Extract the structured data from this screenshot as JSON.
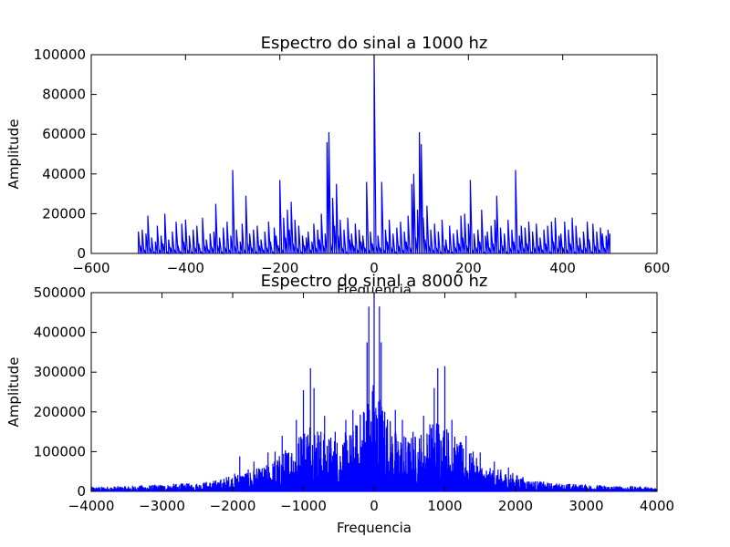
{
  "chart_data": [
    {
      "type": "line",
      "title": "Espectro do sinal a 1000 hz",
      "xlabel": "Frequencia",
      "ylabel": "Amplitude",
      "xlim": [
        -600,
        600
      ],
      "ylim": [
        0,
        100000
      ],
      "xticks": [
        "−600",
        "−400",
        "−200",
        "0",
        "200",
        "400",
        "600"
      ],
      "yticks": [
        "0",
        "20000",
        "40000",
        "60000",
        "80000",
        "100000"
      ],
      "grid": false,
      "series_color": "#0000ff",
      "series": [
        {
          "x": [
            -500,
            -496,
            -492,
            -488,
            -484,
            -480,
            -476,
            -472,
            -468,
            -464,
            -460,
            -456,
            -452,
            -448,
            -444,
            -440,
            -436,
            -432,
            -428,
            -424,
            -420,
            -416,
            -412,
            -408,
            -404,
            -400,
            -396,
            -392,
            -388,
            -384,
            -380,
            -376,
            -372,
            -368,
            -364,
            -360,
            -356,
            -352,
            -348,
            -344,
            -340,
            -336,
            -332,
            -328,
            -324,
            -320,
            -316,
            -312,
            -308,
            -304,
            -300,
            -296,
            -292,
            -288,
            -284,
            -280,
            -276,
            -272,
            -268,
            -264,
            -260,
            -256,
            -252,
            -248,
            -244,
            -240,
            -236,
            -232,
            -228,
            -224,
            -220,
            -216,
            -212,
            -208,
            -204,
            -200,
            -196,
            -192,
            -188,
            -184,
            -180,
            -176,
            -172,
            -168,
            -164,
            -160,
            -156,
            -152,
            -148,
            -144,
            -140,
            -136,
            -132,
            -128,
            -124,
            -120,
            -116,
            -112,
            -108,
            -104,
            -100,
            -96,
            -92,
            -88,
            -84,
            -80,
            -76,
            -72,
            -68,
            -64,
            -60,
            -56,
            -52,
            -48,
            -44,
            -40,
            -36,
            -32,
            -28,
            -24,
            -20,
            -16,
            -12,
            -8,
            -4,
            0,
            4,
            8,
            12,
            16,
            20,
            24,
            28,
            32,
            36,
            40,
            44,
            48,
            52,
            56,
            60,
            64,
            68,
            72,
            76,
            80,
            84,
            88,
            92,
            96,
            100,
            104,
            108,
            112,
            116,
            120,
            124,
            128,
            132,
            136,
            140,
            144,
            148,
            152,
            156,
            160,
            164,
            168,
            172,
            176,
            180,
            184,
            188,
            192,
            196,
            200,
            204,
            208,
            212,
            216,
            220,
            224,
            228,
            232,
            236,
            240,
            244,
            248,
            252,
            256,
            260,
            264,
            268,
            272,
            276,
            280,
            284,
            288,
            292,
            296,
            300,
            304,
            308,
            312,
            316,
            320,
            324,
            328,
            332,
            336,
            340,
            344,
            348,
            352,
            356,
            360,
            364,
            368,
            372,
            376,
            380,
            384,
            388,
            392,
            396,
            400,
            404,
            408,
            412,
            416,
            420,
            424,
            428,
            432,
            436,
            440,
            444,
            448,
            452,
            456,
            460,
            464,
            468,
            472,
            476,
            480,
            484,
            488,
            492,
            496,
            500
          ],
          "y": [
            11000,
            4000,
            12000,
            2000,
            10000,
            19000,
            3000,
            8000,
            1000,
            6000,
            14000,
            2000,
            9000,
            5000,
            20000,
            1000,
            7000,
            3000,
            11000,
            2000,
            16000,
            4000,
            1000,
            15000,
            6000,
            17000,
            2000,
            9000,
            1000,
            12000,
            3000,
            14000,
            5000,
            1000,
            18000,
            4000,
            7000,
            2000,
            10000,
            3000,
            11000,
            25000,
            4000,
            8000,
            1000,
            13000,
            3000,
            16000,
            2000,
            9000,
            42000,
            4000,
            12000,
            1000,
            6000,
            15000,
            2000,
            29000,
            5000,
            10000,
            3000,
            12000,
            1000,
            14000,
            4000,
            7000,
            2000,
            11000,
            3000,
            16000,
            6000,
            1000,
            13000,
            9000,
            4000,
            37000,
            2000,
            18000,
            8000,
            22000,
            12000,
            26000,
            5000,
            17000,
            3000,
            14000,
            1000,
            9000,
            4000,
            8000,
            11000,
            2000,
            6000,
            15000,
            3000,
            12000,
            7000,
            20000,
            4000,
            10000,
            56000,
            61000,
            5000,
            28000,
            14000,
            35000,
            9000,
            17000,
            3000,
            12000,
            1000,
            18000,
            7000,
            10000,
            4000,
            15000,
            2000,
            12000,
            6000,
            9000,
            3000,
            36000,
            2000,
            11000,
            5000,
            100000,
            4000,
            9000,
            3000,
            36000,
            2000,
            12000,
            6000,
            17000,
            3000,
            10000,
            1000,
            13000,
            4000,
            16000,
            2000,
            11000,
            6000,
            19000,
            3000,
            35000,
            40000,
            8000,
            22000,
            61000,
            55000,
            18000,
            7000,
            24000,
            4000,
            12000,
            2000,
            15000,
            3000,
            11000,
            1000,
            17000,
            4000,
            7000,
            2000,
            14000,
            1000,
            10000,
            3000,
            12000,
            5000,
            19000,
            8000,
            20000,
            4000,
            15000,
            37000,
            2000,
            10000,
            3000,
            12000,
            6000,
            22000,
            1000,
            9000,
            11000,
            3000,
            14000,
            5000,
            17000,
            29000,
            2000,
            13000,
            4000,
            10000,
            1000,
            17000,
            3000,
            12000,
            6000,
            42000,
            2000,
            9000,
            14000,
            3000,
            13000,
            5000,
            16000,
            1000,
            11000,
            3000,
            15000,
            4000,
            8000,
            2000,
            12000,
            5000,
            14000,
            1000,
            16000,
            6000,
            18000,
            3000,
            9000,
            10000,
            3000,
            16000,
            2000,
            12000,
            5000,
            18000,
            1000,
            14000,
            4000,
            8000,
            2000,
            11000,
            3000,
            16000,
            7000,
            1000,
            15000,
            4000,
            11000,
            2000,
            13000,
            10000,
            3000,
            9000,
            12000,
            10000
          ]
        }
      ]
    },
    {
      "type": "line",
      "title": "Espectro do sinal a 8000 hz",
      "xlabel": "Frequencia",
      "ylabel": "Amplitude",
      "xlim": [
        -4000,
        4000
      ],
      "ylim": [
        0,
        500000
      ],
      "xticks": [
        "−4000",
        "−3000",
        "−2000",
        "−1000",
        "0",
        "1000",
        "2000",
        "3000",
        "4000"
      ],
      "yticks": [
        "0",
        "100000",
        "200000",
        "300000",
        "400000",
        "500000"
      ],
      "grid": false,
      "series_color": "#0000ff",
      "series": [
        {
          "envelope": [
            [
              -4000,
              12000
            ],
            [
              -3500,
              14000
            ],
            [
              -3000,
              18000
            ],
            [
              -2500,
              22000
            ],
            [
              -2200,
              30000
            ],
            [
              -2000,
              45000
            ],
            [
              -1800,
              55000
            ],
            [
              -1600,
              60000
            ],
            [
              -1500,
              70000
            ],
            [
              -1300,
              100000
            ],
            [
              -1100,
              140000
            ],
            [
              -1000,
              170000
            ],
            [
              -900,
              200000
            ],
            [
              -700,
              150000
            ],
            [
              -500,
              140000
            ],
            [
              -300,
              160000
            ],
            [
              -200,
              200000
            ],
            [
              -100,
              250000
            ],
            [
              0,
              300000
            ],
            [
              100,
              250000
            ],
            [
              200,
              200000
            ],
            [
              300,
              160000
            ],
            [
              500,
              140000
            ],
            [
              700,
              160000
            ],
            [
              900,
              200000
            ],
            [
              1000,
              180000
            ],
            [
              1100,
              150000
            ],
            [
              1300,
              110000
            ],
            [
              1500,
              75000
            ],
            [
              1600,
              60000
            ],
            [
              1800,
              55000
            ],
            [
              2000,
              45000
            ],
            [
              2200,
              30000
            ],
            [
              2500,
              22000
            ],
            [
              3000,
              18000
            ],
            [
              3500,
              14000
            ],
            [
              4000,
              12000
            ]
          ],
          "peaks": [
            [
              -1900,
              88000
            ],
            [
              -1700,
              75000
            ],
            [
              -1500,
              98000
            ],
            [
              -1400,
              100000
            ],
            [
              -1300,
              140000
            ],
            [
              -1100,
              180000
            ],
            [
              -1000,
              255000
            ],
            [
              -900,
              310000
            ],
            [
              -850,
              260000
            ],
            [
              -700,
              190000
            ],
            [
              -550,
              150000
            ],
            [
              -400,
              180000
            ],
            [
              -300,
              205000
            ],
            [
              -150,
              200000
            ],
            [
              -100,
              375000
            ],
            [
              -75,
              465000
            ],
            [
              0,
              500000
            ],
            [
              75,
              465000
            ],
            [
              100,
              375000
            ],
            [
              150,
              200000
            ],
            [
              300,
              205000
            ],
            [
              400,
              180000
            ],
            [
              550,
              150000
            ],
            [
              700,
              190000
            ],
            [
              850,
              260000
            ],
            [
              900,
              310000
            ],
            [
              1000,
              315000
            ],
            [
              1100,
              180000
            ],
            [
              1300,
              140000
            ],
            [
              1400,
              100000
            ],
            [
              1500,
              98000
            ],
            [
              1700,
              75000
            ],
            [
              1900,
              60000
            ]
          ]
        }
      ]
    }
  ]
}
